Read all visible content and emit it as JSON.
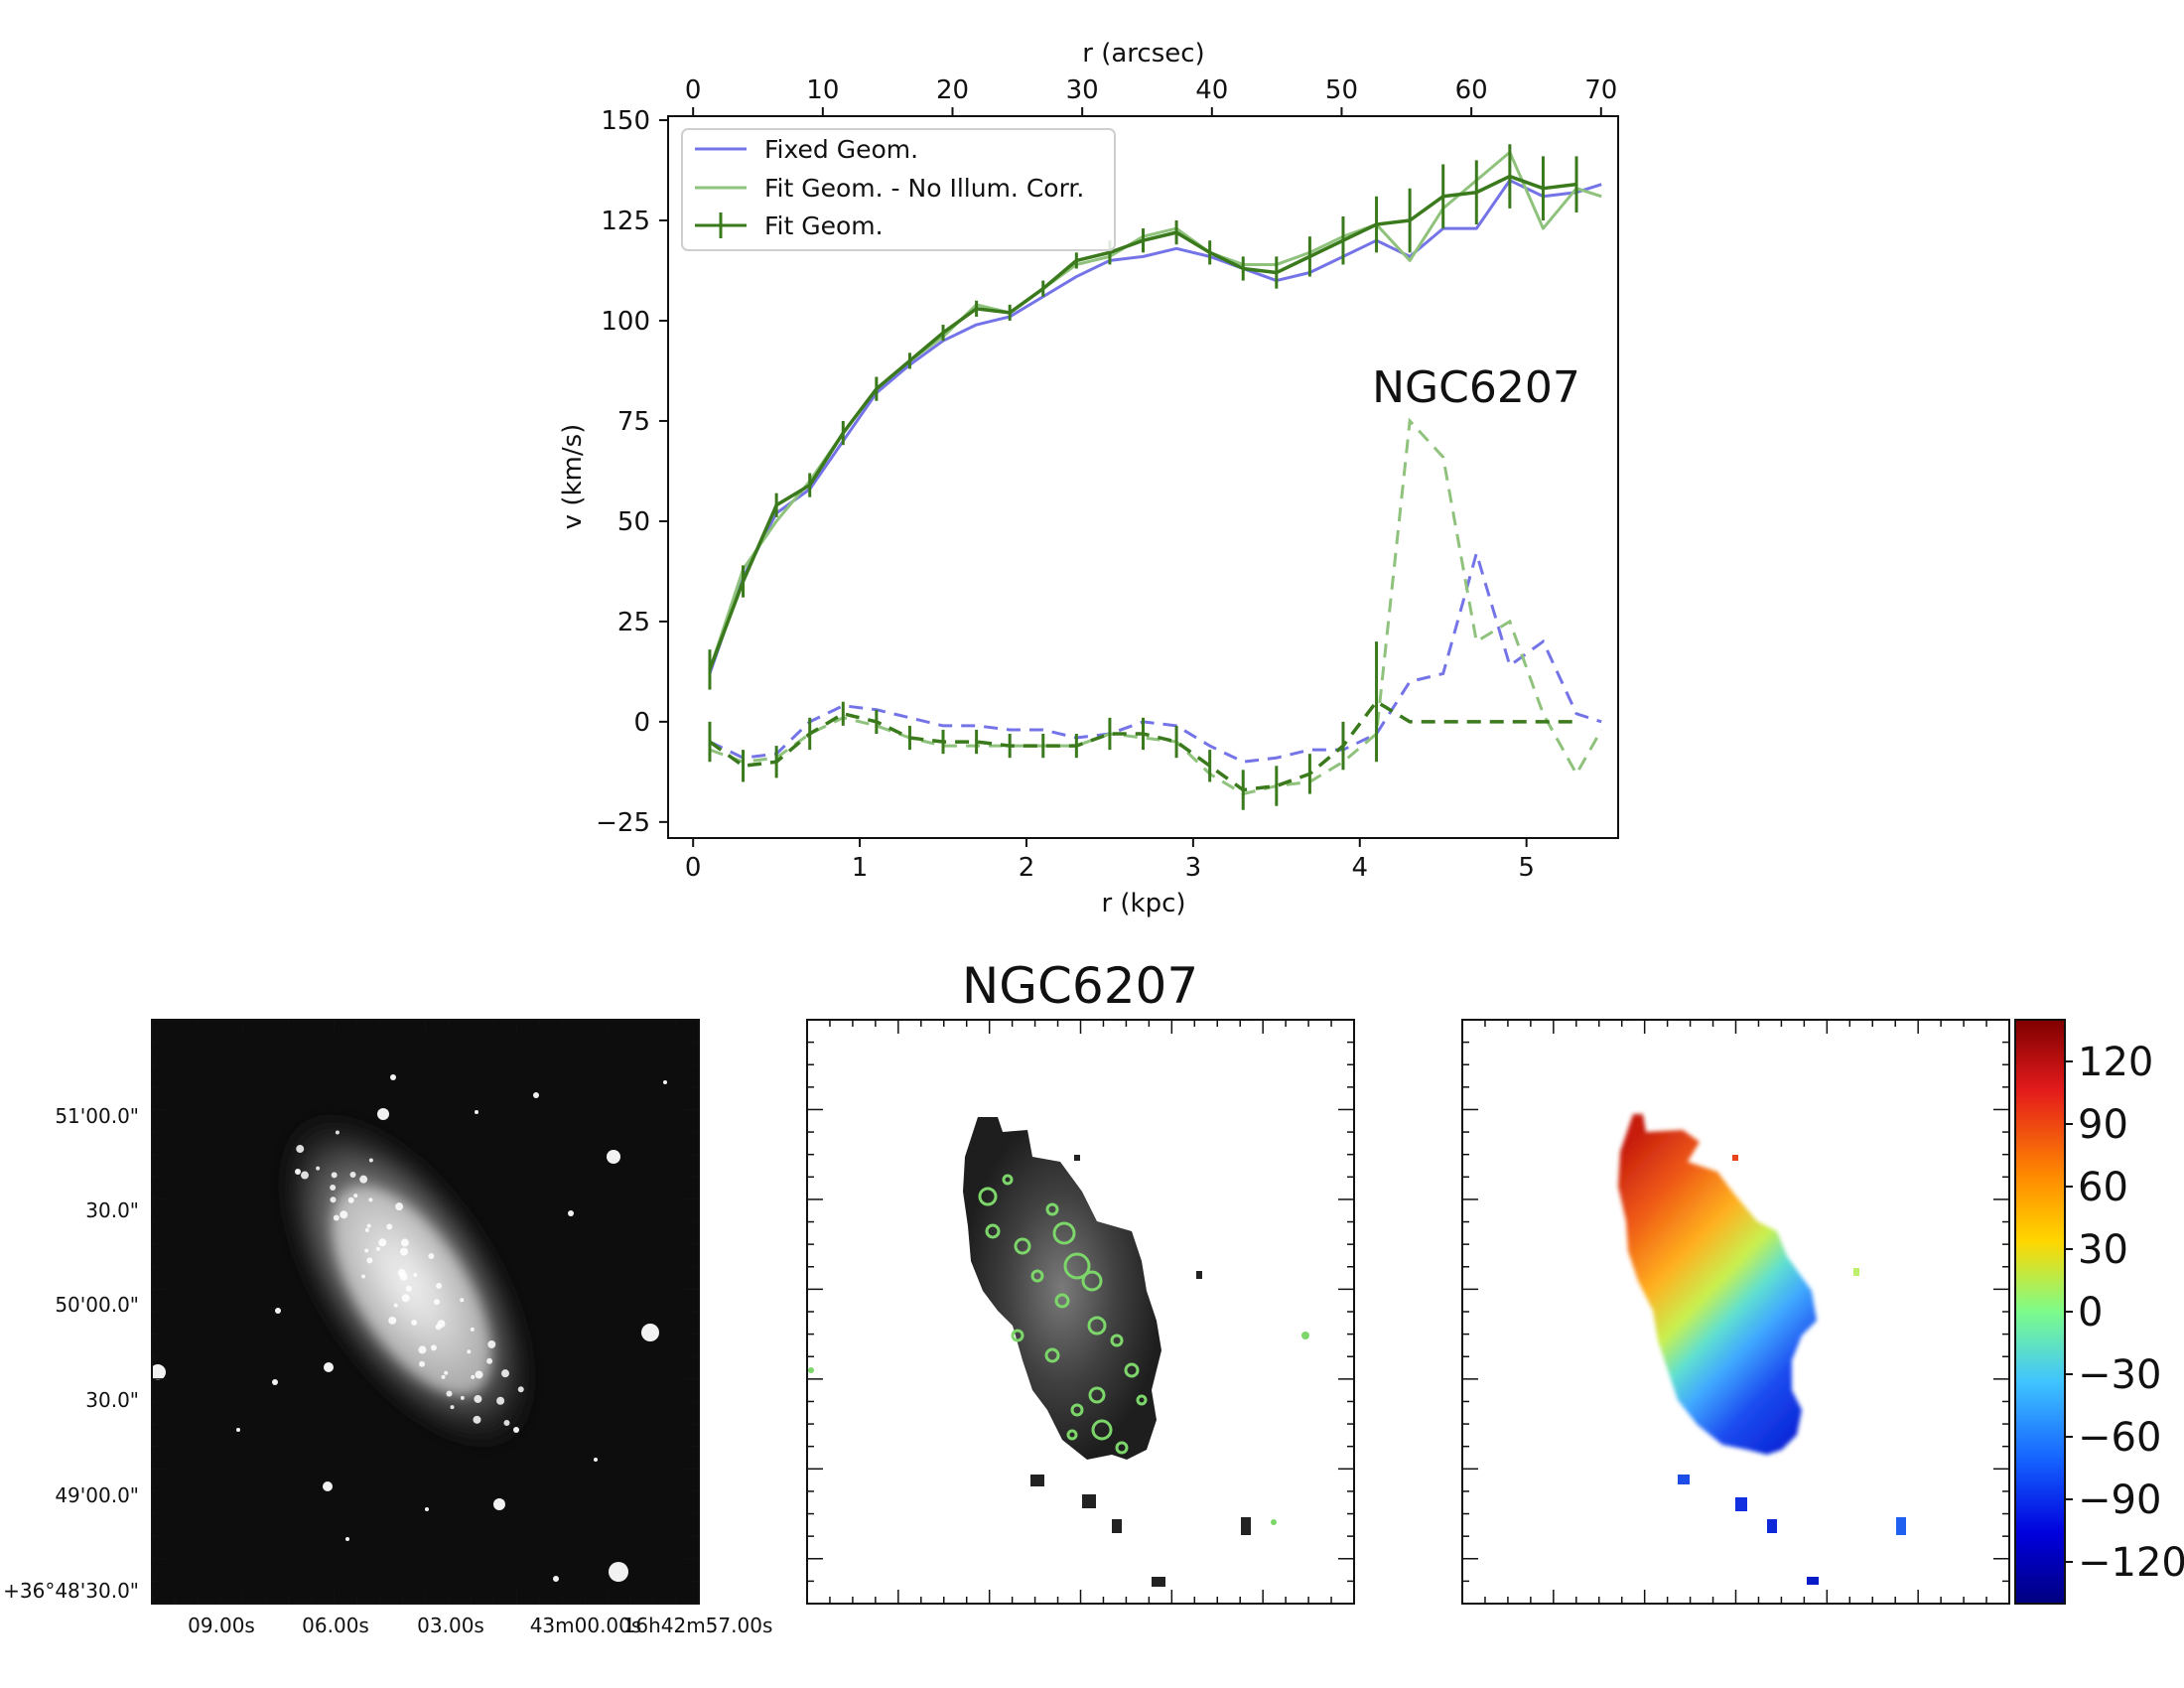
{
  "chart_data": [
    {
      "type": "line",
      "title": "NGC6207",
      "xlabel": "r (kpc)",
      "xlabel_top": "r (arcsec)",
      "ylabel": "v (km/s)",
      "xlim": [
        -0.15,
        5.55
      ],
      "ylim": [
        -29,
        151
      ],
      "xticks": [
        0,
        1,
        2,
        3,
        4,
        5
      ],
      "xticks_top_arcsec": [
        0,
        10,
        20,
        30,
        40,
        50,
        60,
        70
      ],
      "arcsec_per_kpc": 12.85,
      "yticks": [
        -25,
        0,
        25,
        50,
        75,
        100,
        125,
        150
      ],
      "ytick_labels": [
        "−25",
        "0",
        "25",
        "50",
        "75",
        "100",
        "125",
        "150"
      ],
      "legend_position": "upper-left",
      "legend": [
        "Fixed Geom.",
        "Fit Geom. - No Illum. Corr.",
        "Fit Geom."
      ],
      "x": [
        0.1,
        0.3,
        0.5,
        0.7,
        0.9,
        1.1,
        1.3,
        1.5,
        1.7,
        1.9,
        2.1,
        2.3,
        2.5,
        2.7,
        2.9,
        3.1,
        3.3,
        3.5,
        3.7,
        3.9,
        4.1,
        4.3,
        4.5,
        4.7,
        4.9,
        5.1,
        5.3,
        5.45
      ],
      "series": [
        {
          "name": "Fixed Geom.",
          "color": "#7474e8",
          "rotation": [
            12,
            36,
            52,
            58,
            70,
            82,
            89,
            95,
            99,
            101,
            106,
            111,
            115,
            116,
            118,
            116,
            113,
            110,
            112,
            116,
            120,
            116,
            123,
            123,
            135,
            131,
            132,
            134
          ],
          "radial": [
            -5,
            -9,
            -8,
            0,
            4,
            3,
            1,
            -1,
            -1,
            -2,
            -2,
            -4,
            -3,
            0,
            -1,
            -6,
            -10,
            -9,
            -7,
            -7,
            -3,
            10,
            12,
            42,
            14,
            20,
            2,
            0
          ]
        },
        {
          "name": "Fit Geom. - No Illum. Corr.",
          "color": "#8fc27c",
          "rotation": [
            13,
            38,
            50,
            60,
            72,
            83,
            90,
            96,
            104,
            102,
            108,
            114,
            116,
            121,
            123,
            117,
            114,
            114,
            117,
            121,
            124,
            115,
            128,
            135,
            142,
            123,
            133,
            131
          ],
          "radial": [
            -7,
            -10,
            -9,
            -3,
            1,
            -1,
            -4,
            -6,
            -6,
            -6,
            -6,
            -6,
            -3,
            -4,
            -5,
            -13,
            -18,
            -16,
            -15,
            -10,
            -3,
            75,
            66,
            20,
            25,
            2,
            -13,
            -2
          ]
        },
        {
          "name": "Fit Geom.",
          "color": "#3a7a1c",
          "errorbars": true,
          "rotation": [
            13,
            35,
            54,
            59,
            72,
            83,
            90,
            97,
            103,
            102,
            108,
            115,
            117,
            120,
            122,
            117,
            113,
            112,
            116,
            120,
            124,
            125,
            131,
            132,
            136,
            133,
            134
          ],
          "radial": [
            -5,
            -11,
            -10,
            -3,
            2,
            0,
            -4,
            -5,
            -5,
            -6,
            -6,
            -6,
            -3,
            -3,
            -5,
            -11,
            -17,
            -16,
            -13,
            -6,
            5,
            0,
            0,
            0,
            0,
            0,
            0
          ],
          "rot_err": [
            5,
            4,
            3,
            3,
            3,
            3,
            2,
            2,
            2,
            2,
            2,
            2,
            3,
            3,
            3,
            3,
            3,
            4,
            5,
            6,
            7,
            8,
            8,
            8,
            8,
            8,
            7
          ],
          "rad_err": [
            5,
            4,
            4,
            4,
            3,
            3,
            3,
            3,
            3,
            3,
            3,
            3,
            4,
            4,
            4,
            4,
            5,
            5,
            5,
            6,
            15,
            0,
            0,
            0,
            0,
            0,
            0
          ]
        }
      ],
      "annotations": [
        "NGC6207"
      ]
    },
    {
      "type": "image",
      "title": "NGC6207",
      "description_panels": [
        "optical image",
        "H-alpha intensity map",
        "velocity field"
      ],
      "dec_tick_labels": [
        "51'00.0\"",
        "30.0\"",
        "50'00.0\"",
        "30.0\"",
        "49'00.0\"",
        "+36°48'30.0\""
      ],
      "ra_tick_labels": [
        "09.00s",
        "06.00s",
        "03.00s",
        "43m00.00s",
        "16h42m57.00s"
      ],
      "colorbar_ticks": [
        120,
        90,
        60,
        30,
        0,
        -30,
        -60,
        -90,
        -120
      ],
      "colorbar_tick_labels": [
        "120",
        "90",
        "60",
        "30",
        "0",
        "−30",
        "−60",
        "−90",
        "−120"
      ],
      "colorbar_range": [
        -140,
        140
      ]
    }
  ]
}
